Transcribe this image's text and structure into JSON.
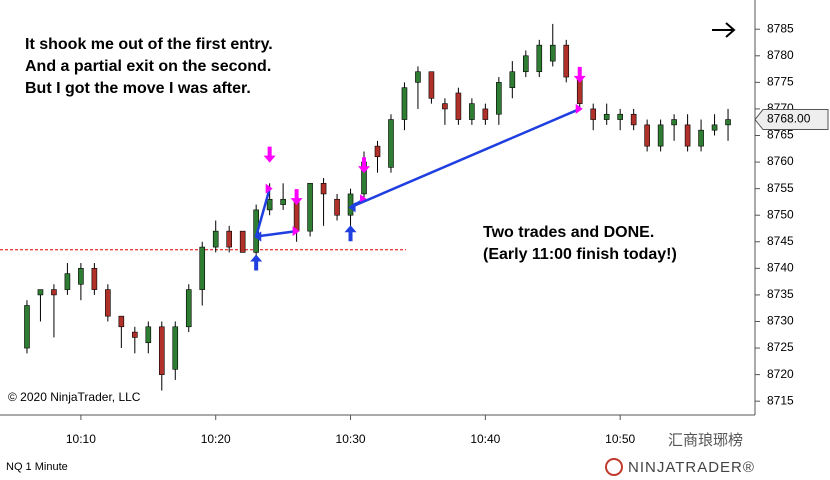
{
  "chart_data": {
    "type": "candlestick",
    "annotations": [
      "It shook me out of the first entry.",
      "And a partial exit on the second.",
      "But I got the move I was after."
    ],
    "annotation2": [
      "Two trades and DONE.",
      "(Early 11:00 finish today!)"
    ],
    "copyright": "© 2020 NinjaTrader, LLC",
    "instrument": "NQ 1 Minute",
    "brand": "NINJATRADER®",
    "watermark": "汇商琅琊榜",
    "up_color": "#2e7d32",
    "down_color": "#b0302a",
    "x": [
      "10:06",
      "10:07",
      "10:08",
      "10:09",
      "10:10",
      "10:11",
      "10:12",
      "10:13",
      "10:14",
      "10:15",
      "10:16",
      "10:17",
      "10:18",
      "10:19",
      "10:20",
      "10:21",
      "10:22",
      "10:23",
      "10:24",
      "10:25",
      "10:26",
      "10:27",
      "10:28",
      "10:29",
      "10:30",
      "10:31",
      "10:32",
      "10:33",
      "10:34",
      "10:35",
      "10:36",
      "10:37",
      "10:38",
      "10:39",
      "10:40",
      "10:41",
      "10:42",
      "10:43",
      "10:44",
      "10:45",
      "10:46",
      "10:47",
      "10:48",
      "10:49",
      "10:50",
      "10:51",
      "10:52",
      "10:53",
      "10:54",
      "10:55",
      "10:56",
      "10:57",
      "10:58"
    ],
    "open": [
      8725,
      8735,
      8736,
      8736,
      8737,
      8740,
      8736,
      8731,
      8728,
      8726,
      8729,
      8721,
      8729,
      8736,
      8744,
      8747,
      8747,
      8743,
      8751,
      8752,
      8753,
      8747,
      8756,
      8753,
      8750,
      8754,
      8763,
      8759,
      8768,
      8775,
      8777,
      8771,
      8773,
      8768,
      8770,
      8769,
      8774,
      8777,
      8777,
      8779,
      8782,
      8776,
      8770,
      8768,
      8768,
      8769,
      8767,
      8763,
      8767,
      8767,
      8763,
      8766,
      8767
    ],
    "high": [
      8734,
      8736,
      8737,
      8741,
      8741,
      8741,
      8737,
      8731,
      8729,
      8730,
      8730,
      8730,
      8737,
      8745,
      8749,
      8748,
      8747,
      8752,
      8756,
      8756,
      8754,
      8756,
      8757,
      8754,
      8755,
      8762,
      8764,
      8769,
      8775,
      8778,
      8777,
      8772,
      8774,
      8772,
      8771,
      8776,
      8779,
      8781,
      8783,
      8786,
      8783,
      8777,
      8771,
      8771,
      8770,
      8770,
      8768,
      8768,
      8769,
      8769,
      8768,
      8769,
      8770
    ],
    "low": [
      8724,
      8730,
      8727,
      8735,
      8734,
      8735,
      8730,
      8725,
      8724,
      8724,
      8717,
      8719,
      8728,
      8733,
      8743,
      8743,
      8743,
      8742,
      8750,
      8751,
      8745,
      8746,
      8748,
      8749,
      8746,
      8753,
      8758,
      8758,
      8766,
      8770,
      8771,
      8767,
      8767,
      8767,
      8767,
      8767,
      8772,
      8776,
      8776,
      8778,
      8775,
      8770,
      8766,
      8767,
      8766,
      8766,
      8762,
      8762,
      8764,
      8762,
      8762,
      8765,
      8764
    ],
    "close": [
      8733,
      8736,
      8735,
      8739,
      8740,
      8736,
      8731,
      8729,
      8727,
      8729,
      8720,
      8729,
      8736,
      8744,
      8747,
      8744,
      8743,
      8751,
      8753,
      8753,
      8747,
      8756,
      8754,
      8750,
      8754,
      8760,
      8761,
      8768,
      8774,
      8777,
      8772,
      8770,
      8768,
      8771,
      8768,
      8775,
      8777,
      8780,
      8782,
      8782,
      8776,
      8771,
      8768,
      8769,
      8769,
      8767,
      8763,
      8767,
      8768,
      8763,
      8766,
      8767,
      8768
    ],
    "reference_line": 8743.5,
    "trades": [
      {
        "entry_time": "10:23",
        "entry_price": 8746,
        "exit_time": "10:24",
        "exit_price": 8755
      },
      {
        "entry_time": "10:23",
        "entry_price": 8746,
        "exit_time": "10:26",
        "exit_price": 8747
      },
      {
        "entry_time": "10:30",
        "entry_price": 8751.5,
        "exit_time": "10:31",
        "exit_price": 8753
      },
      {
        "entry_time": "10:30",
        "entry_price": 8751.5,
        "exit_time": "10:47",
        "exit_price": 8770
      }
    ],
    "last_price": {
      "value": 8768,
      "label": "8768.00"
    },
    "xlim": [
      "10:04",
      "11:00"
    ],
    "xticks": [
      "10:10",
      "10:20",
      "10:30",
      "10:40",
      "10:50"
    ],
    "ylim": [
      8712.4,
      8790.5
    ],
    "yticks": [
      8715,
      8720,
      8725,
      8730,
      8735,
      8740,
      8745,
      8750,
      8755,
      8760,
      8765,
      8770,
      8775,
      8780,
      8785
    ]
  }
}
